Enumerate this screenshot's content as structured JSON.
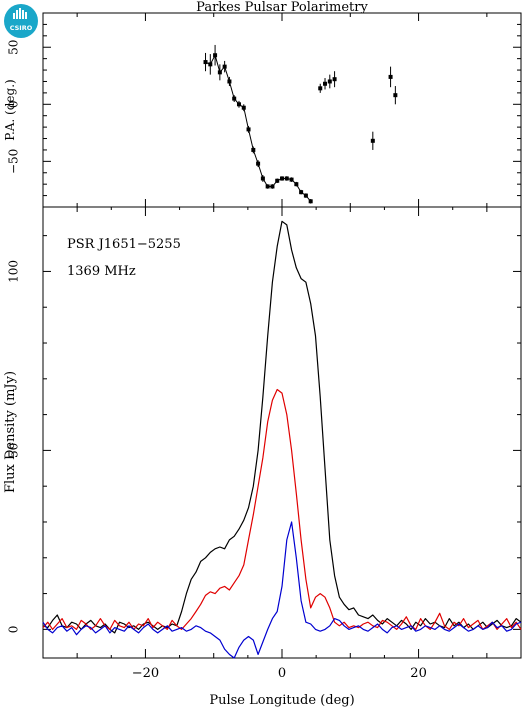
{
  "title": "Parkes Pulsar Polarimetry",
  "logo_text": "CSIRO",
  "chart_data": [
    {
      "type": "scatter",
      "panel": "position-angle",
      "ylabel": "P.A. (deg.)",
      "xlim": [
        -35,
        35
      ],
      "ylim": [
        -90,
        80
      ],
      "yticks": [
        -50,
        0,
        50
      ],
      "ytick_labels": [
        "−50",
        "0",
        "50"
      ],
      "xticks": [
        -20,
        0,
        20
      ],
      "connected_segment": {
        "x": [
          -11.2,
          -10.5,
          -9.8,
          -9.1,
          -8.4,
          -7.7,
          -7.0,
          -6.3,
          -5.6,
          -4.9,
          -4.2,
          -3.5,
          -2.8,
          -2.1,
          -1.4,
          -0.7,
          0.0,
          0.7,
          1.4,
          2.1,
          2.8,
          3.5,
          4.2
        ],
        "y": [
          37,
          35,
          43,
          28,
          33,
          20,
          5,
          0,
          -3,
          -22,
          -40,
          -52,
          -65,
          -72,
          -72,
          -67,
          -65,
          -65,
          -66,
          -70,
          -77,
          -80,
          -85
        ],
        "err": [
          8,
          9,
          9,
          7,
          5,
          4,
          3,
          3,
          3,
          3,
          3,
          3,
          3,
          2,
          2,
          2,
          2,
          2,
          2,
          2,
          2,
          2,
          2
        ]
      },
      "points": {
        "x": [
          5.6,
          6.3,
          7.0,
          7.7,
          13.3,
          15.9,
          16.6
        ],
        "y": [
          14,
          18,
          20,
          22,
          -32,
          24,
          8
        ],
        "err": [
          4,
          5,
          6,
          7,
          8,
          9,
          8
        ]
      }
    },
    {
      "type": "line",
      "panel": "profile",
      "annotations": [
        "PSR J1651−5255",
        "1369 MHz"
      ],
      "xlabel": "Pulse Longitude (deg)",
      "ylabel": "Flux Density (mJy)",
      "xlim": [
        -35,
        35
      ],
      "ylim": [
        -8,
        118
      ],
      "xticks": [
        -20,
        0,
        20
      ],
      "xtick_labels": [
        "−20",
        "0",
        "20"
      ],
      "yticks": [
        0,
        50,
        100
      ],
      "ytick_labels": [
        "0",
        "50",
        "100"
      ],
      "x": [
        -35.0,
        -34.3,
        -33.6,
        -32.9,
        -32.2,
        -31.5,
        -30.8,
        -30.1,
        -29.4,
        -28.7,
        -28.0,
        -27.3,
        -26.6,
        -25.9,
        -25.2,
        -24.5,
        -23.8,
        -23.1,
        -22.4,
        -21.7,
        -21.0,
        -20.3,
        -19.6,
        -18.9,
        -18.2,
        -17.5,
        -16.8,
        -16.1,
        -15.4,
        -14.7,
        -14.0,
        -13.3,
        -12.6,
        -11.9,
        -11.2,
        -10.5,
        -9.8,
        -9.1,
        -8.4,
        -7.7,
        -7.0,
        -6.3,
        -5.6,
        -4.9,
        -4.2,
        -3.5,
        -2.8,
        -2.1,
        -1.4,
        -0.7,
        0.0,
        0.7,
        1.4,
        2.1,
        2.8,
        3.5,
        4.2,
        4.9,
        5.6,
        6.3,
        7.0,
        7.7,
        8.4,
        9.1,
        9.8,
        10.5,
        11.2,
        11.9,
        12.6,
        13.3,
        14.0,
        14.7,
        15.4,
        16.1,
        16.8,
        17.5,
        18.2,
        18.9,
        19.6,
        20.3,
        21.0,
        21.7,
        22.4,
        23.1,
        23.8,
        24.5,
        25.2,
        25.9,
        26.6,
        27.3,
        28.0,
        28.7,
        29.4,
        30.1,
        30.8,
        31.5,
        32.2,
        32.9,
        33.6,
        34.3,
        35.0
      ],
      "series": [
        {
          "color": "#000000",
          "values": [
            1.0,
            0.5,
            2.5,
            4.0,
            1.0,
            0.5,
            2.0,
            1.5,
            0.0,
            1.5,
            2.5,
            1.0,
            0.5,
            1.5,
            0.0,
            -1.0,
            2.0,
            1.5,
            0.5,
            1.0,
            0.0,
            1.5,
            2.0,
            1.0,
            0.0,
            1.0,
            0.5,
            1.5,
            1.0,
            5.0,
            10.0,
            14.0,
            16.0,
            19.0,
            20.0,
            21.5,
            22.5,
            23.0,
            22.5,
            25.0,
            26.0,
            28.0,
            30.5,
            34.0,
            40.0,
            50.0,
            65.0,
            82.0,
            97.0,
            107.0,
            114.0,
            113.0,
            106.0,
            101.0,
            98.0,
            97.0,
            91.0,
            82.0,
            65.0,
            45.0,
            25.0,
            15.0,
            9.0,
            7.0,
            5.5,
            6.0,
            4.0,
            3.5,
            3.0,
            4.0,
            2.5,
            1.5,
            3.0,
            2.0,
            1.0,
            2.5,
            1.5,
            0.0,
            2.0,
            1.0,
            3.0,
            1.5,
            2.0,
            1.0,
            0.5,
            3.0,
            1.0,
            2.0,
            0.5,
            1.5,
            0.0,
            1.0,
            2.0,
            0.5,
            1.5,
            2.5,
            1.0,
            0.5,
            1.0,
            3.0,
            2.0
          ]
        },
        {
          "color": "#e00000",
          "values": [
            0.5,
            2.0,
            0.0,
            1.5,
            3.0,
            0.5,
            1.0,
            0.0,
            2.5,
            1.5,
            0.0,
            1.0,
            3.0,
            1.0,
            0.0,
            2.5,
            1.0,
            0.5,
            2.0,
            0.0,
            1.5,
            1.0,
            3.0,
            0.5,
            2.0,
            1.0,
            0.0,
            2.5,
            1.0,
            0.0,
            1.5,
            3.0,
            5.0,
            7.0,
            9.5,
            10.5,
            10.0,
            11.5,
            12.0,
            11.0,
            13.0,
            15.0,
            18.0,
            25.0,
            32.0,
            40.0,
            48.0,
            58.0,
            64.0,
            67.0,
            66.0,
            60.0,
            50.0,
            38.0,
            25.0,
            14.0,
            6.0,
            9.0,
            10.0,
            9.0,
            6.0,
            2.0,
            1.0,
            2.0,
            0.5,
            1.0,
            0.5,
            1.5,
            2.0,
            1.0,
            0.5,
            2.5,
            2.0,
            1.0,
            0.0,
            1.5,
            3.5,
            1.0,
            0.0,
            3.0,
            1.0,
            0.0,
            2.0,
            4.5,
            1.0,
            0.0,
            2.0,
            1.0,
            3.0,
            0.5,
            1.5,
            2.5,
            0.0,
            1.0,
            2.0,
            0.0,
            1.5,
            3.0,
            0.5,
            2.0,
            0.0
          ]
        },
        {
          "color": "#0000d0",
          "values": [
            2.0,
            0.0,
            -1.0,
            0.5,
            1.0,
            -0.5,
            0.5,
            -1.5,
            0.0,
            1.0,
            0.5,
            -1.0,
            0.0,
            1.0,
            -1.0,
            0.5,
            0.0,
            -0.5,
            1.0,
            0.0,
            -1.0,
            0.5,
            1.5,
            0.0,
            -1.0,
            0.0,
            1.0,
            -0.5,
            0.0,
            0.5,
            -0.5,
            0.0,
            1.0,
            0.5,
            -0.5,
            -1.0,
            -2.0,
            -3.0,
            -5.5,
            -7.0,
            -8.0,
            -5.0,
            -3.0,
            -2.0,
            -3.0,
            -7.0,
            -3.5,
            0.0,
            3.0,
            5.0,
            12.0,
            25.0,
            30.0,
            20.0,
            8.0,
            2.0,
            1.5,
            0.0,
            -0.5,
            0.0,
            1.0,
            3.0,
            2.5,
            1.0,
            0.0,
            0.5,
            1.0,
            0.0,
            -0.5,
            0.5,
            1.5,
            0.0,
            -1.0,
            0.5,
            1.0,
            0.0,
            0.5,
            1.0,
            -0.5,
            0.0,
            1.0,
            0.5,
            0.0,
            1.0,
            0.0,
            -0.5,
            0.5,
            1.5,
            0.5,
            -0.5,
            0.0,
            1.0,
            0.0,
            0.5,
            2.0,
            0.5,
            1.0,
            -0.5,
            0.0,
            1.5,
            2.0
          ]
        }
      ]
    }
  ]
}
